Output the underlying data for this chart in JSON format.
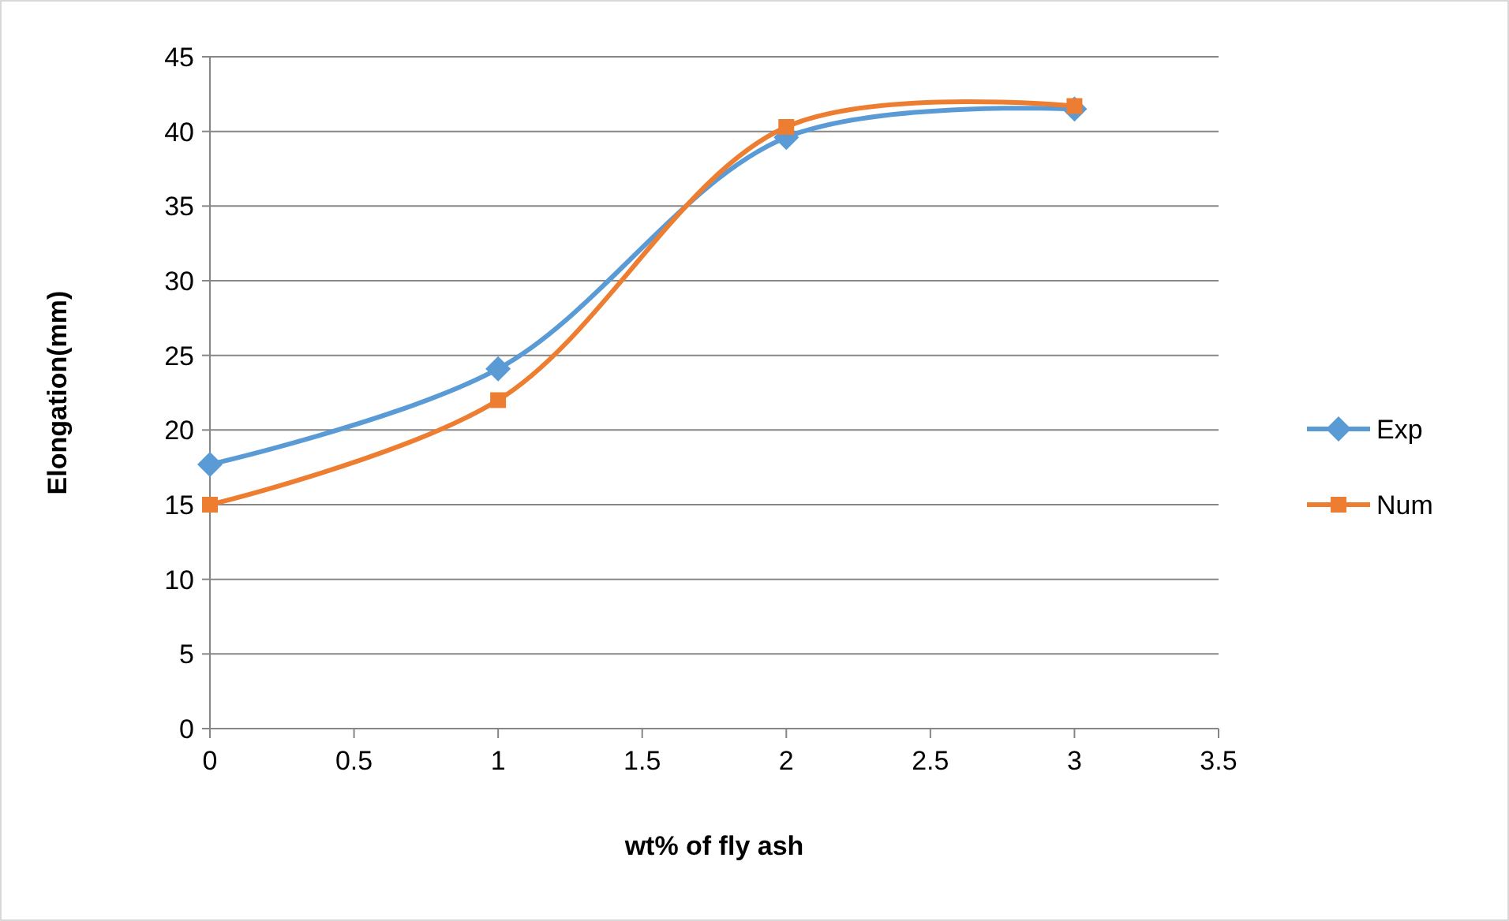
{
  "chart_data": {
    "type": "line",
    "xlabel": "wt% of fly ash",
    "ylabel": "Elongation(mm)",
    "x": [
      0,
      1,
      2,
      3
    ],
    "series": [
      {
        "name": "Exp",
        "color": "#5b9bd5",
        "marker": "diamond",
        "values": [
          17.7,
          24.1,
          39.6,
          41.5
        ]
      },
      {
        "name": "Num",
        "color": "#ed7d31",
        "marker": "square",
        "values": [
          15,
          22,
          40.3,
          41.7
        ]
      }
    ],
    "xlim": [
      0,
      3.5
    ],
    "xticks": [
      0,
      {
        "value": 0.5,
        "label": "0.5"
      },
      1,
      {
        "value": 1.5,
        "label": "1.5"
      },
      2,
      {
        "value": 2.5,
        "label": "2.5"
      },
      3,
      {
        "value": 3.5,
        "label": "3.5"
      }
    ],
    "ylim": [
      0,
      45
    ],
    "yticks": [
      0,
      5,
      10,
      15,
      20,
      25,
      30,
      35,
      40,
      45
    ],
    "grid": "y",
    "legend": "right",
    "line_style": "solid"
  }
}
